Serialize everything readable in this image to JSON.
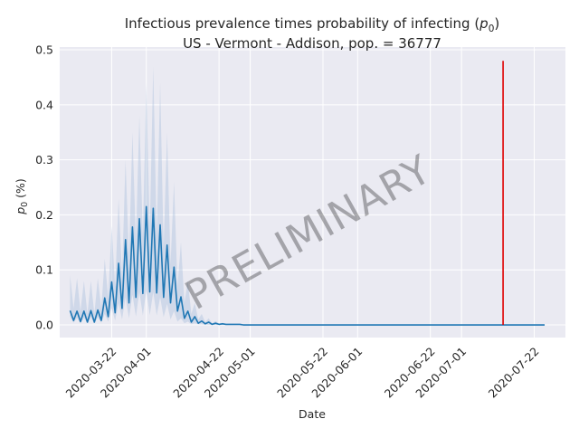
{
  "chart_data": {
    "type": "line",
    "title_line1": "Infectious prevalence times probability of infecting (",
    "title_var": "p",
    "title_sub": "0",
    "title_line1_end": ")",
    "title_line2": "US - Vermont - Addison, pop. = 36777",
    "xlabel": "Date",
    "ylabel_var": "p",
    "ylabel_sub": "0",
    "ylabel_unit": " (%)",
    "watermark": "PRELIMINARY",
    "ylim": [
      -0.023,
      0.505
    ],
    "yticks": [
      0.0,
      0.1,
      0.2,
      0.3,
      0.4,
      0.5
    ],
    "ytick_labels": [
      "0.0",
      "0.1",
      "0.2",
      "0.3",
      "0.4",
      "0.5"
    ],
    "xlim": [
      "2020-03-07",
      "2020-07-31"
    ],
    "xticks": [
      "2020-03-22",
      "2020-04-01",
      "2020-04-22",
      "2020-05-01",
      "2020-05-22",
      "2020-06-01",
      "2020-06-22",
      "2020-07-01",
      "2020-07-22"
    ],
    "grid": true,
    "colors": {
      "line": "#1f77b4",
      "band": "#b0c4de",
      "marker": "#e00000",
      "plot_bg": "#eaeaf2",
      "grid": "#ffffff"
    },
    "series": [
      {
        "start_date": "2020-03-10",
        "end_date": "2020-07-25",
        "mean_head": [
          0.026,
          0.008,
          0.025,
          0.006,
          0.025,
          0.005,
          0.026,
          0.005,
          0.027,
          0.008,
          0.049,
          0.015,
          0.078,
          0.022,
          0.112,
          0.03,
          0.155,
          0.04,
          0.178,
          0.05,
          0.193,
          0.057,
          0.215,
          0.06,
          0.212,
          0.058,
          0.182,
          0.05,
          0.145,
          0.04,
          0.105,
          0.025,
          0.051,
          0.012,
          0.025,
          0.005,
          0.015,
          0.003,
          0.007,
          0.002,
          0.005,
          0.001,
          0.003,
          0.001,
          0.002,
          0.001,
          0.001,
          0.001,
          0.001,
          0.001
        ],
        "upper_head": [
          0.09,
          0.03,
          0.085,
          0.025,
          0.08,
          0.02,
          0.08,
          0.02,
          0.085,
          0.03,
          0.12,
          0.05,
          0.18,
          0.07,
          0.23,
          0.09,
          0.3,
          0.12,
          0.35,
          0.15,
          0.38,
          0.16,
          0.44,
          0.17,
          0.47,
          0.16,
          0.44,
          0.14,
          0.35,
          0.11,
          0.26,
          0.07,
          0.15,
          0.04,
          0.08,
          0.02,
          0.04,
          0.01,
          0.02,
          0.005,
          0.012,
          0.003,
          0.007,
          0.002,
          0.004,
          0.001,
          0.002,
          0.001,
          0.001,
          0.001
        ],
        "lower_head": [
          0.015,
          0.004,
          0.013,
          0.003,
          0.013,
          0.003,
          0.014,
          0.003,
          0.014,
          0.004,
          0.02,
          0.006,
          0.03,
          0.008,
          0.04,
          0.01,
          0.05,
          0.012,
          0.055,
          0.015,
          0.06,
          0.017,
          0.062,
          0.018,
          0.06,
          0.017,
          0.05,
          0.014,
          0.038,
          0.01,
          0.025,
          0.006,
          0.012,
          0.003,
          0.006,
          0.001,
          0.003,
          0.001,
          0.001,
          0.0,
          0.0,
          0.0,
          0.0,
          0.0,
          0.0,
          0.0,
          0.0,
          0.0,
          0.0,
          0.0
        ],
        "tail_value": 0.0
      }
    ],
    "marker_line": {
      "date": "2020-07-13",
      "y_from": 0.0,
      "y_to": 0.48
    }
  }
}
